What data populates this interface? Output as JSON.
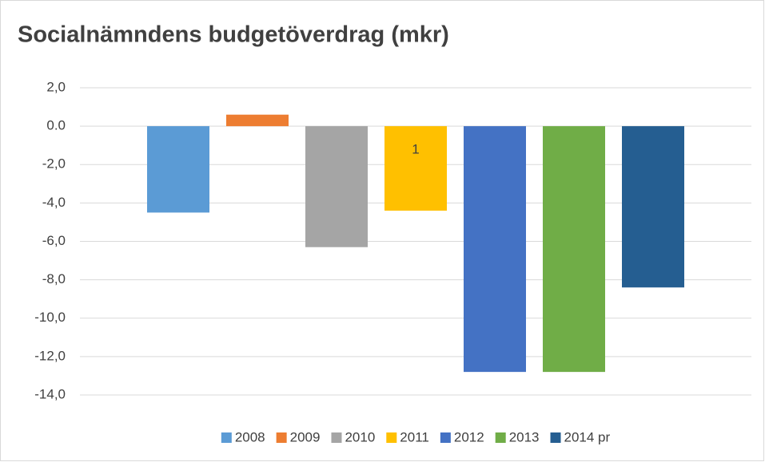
{
  "chart_data": {
    "type": "bar",
    "title": "Socialnämndens budgetöverdrag (mkr)",
    "annotation": "1",
    "series": [
      {
        "name": "2008",
        "color": "#5b9bd5",
        "values": [
          -4.5
        ]
      },
      {
        "name": "2009",
        "color": "#ed7d31",
        "values": [
          0.6
        ]
      },
      {
        "name": "2010",
        "color": "#a5a5a5",
        "values": [
          -6.3
        ]
      },
      {
        "name": "2011",
        "color": "#ffc000",
        "values": [
          -4.4
        ]
      },
      {
        "name": "2012",
        "color": "#4472c4",
        "values": [
          -12.8
        ]
      },
      {
        "name": "2013",
        "color": "#70ad47",
        "values": [
          -12.8
        ]
      },
      {
        "name": "2014 pr",
        "color": "#255e91",
        "values": [
          -8.4
        ]
      }
    ],
    "ylim": [
      -14,
      2
    ],
    "yticks": [
      {
        "value": 2,
        "label": "2,0"
      },
      {
        "value": 0,
        "label": "0.0"
      },
      {
        "value": -2,
        "label": "-2,0"
      },
      {
        "value": -4,
        "label": "-4,0"
      },
      {
        "value": -6,
        "label": "-6,0"
      },
      {
        "value": -8,
        "label": "-8,0"
      },
      {
        "value": -10,
        "label": "-10,0"
      },
      {
        "value": -12,
        "label": "-12,0"
      },
      {
        "value": -14,
        "label": "-14,0"
      }
    ],
    "grid": true,
    "legend": "bottom"
  }
}
